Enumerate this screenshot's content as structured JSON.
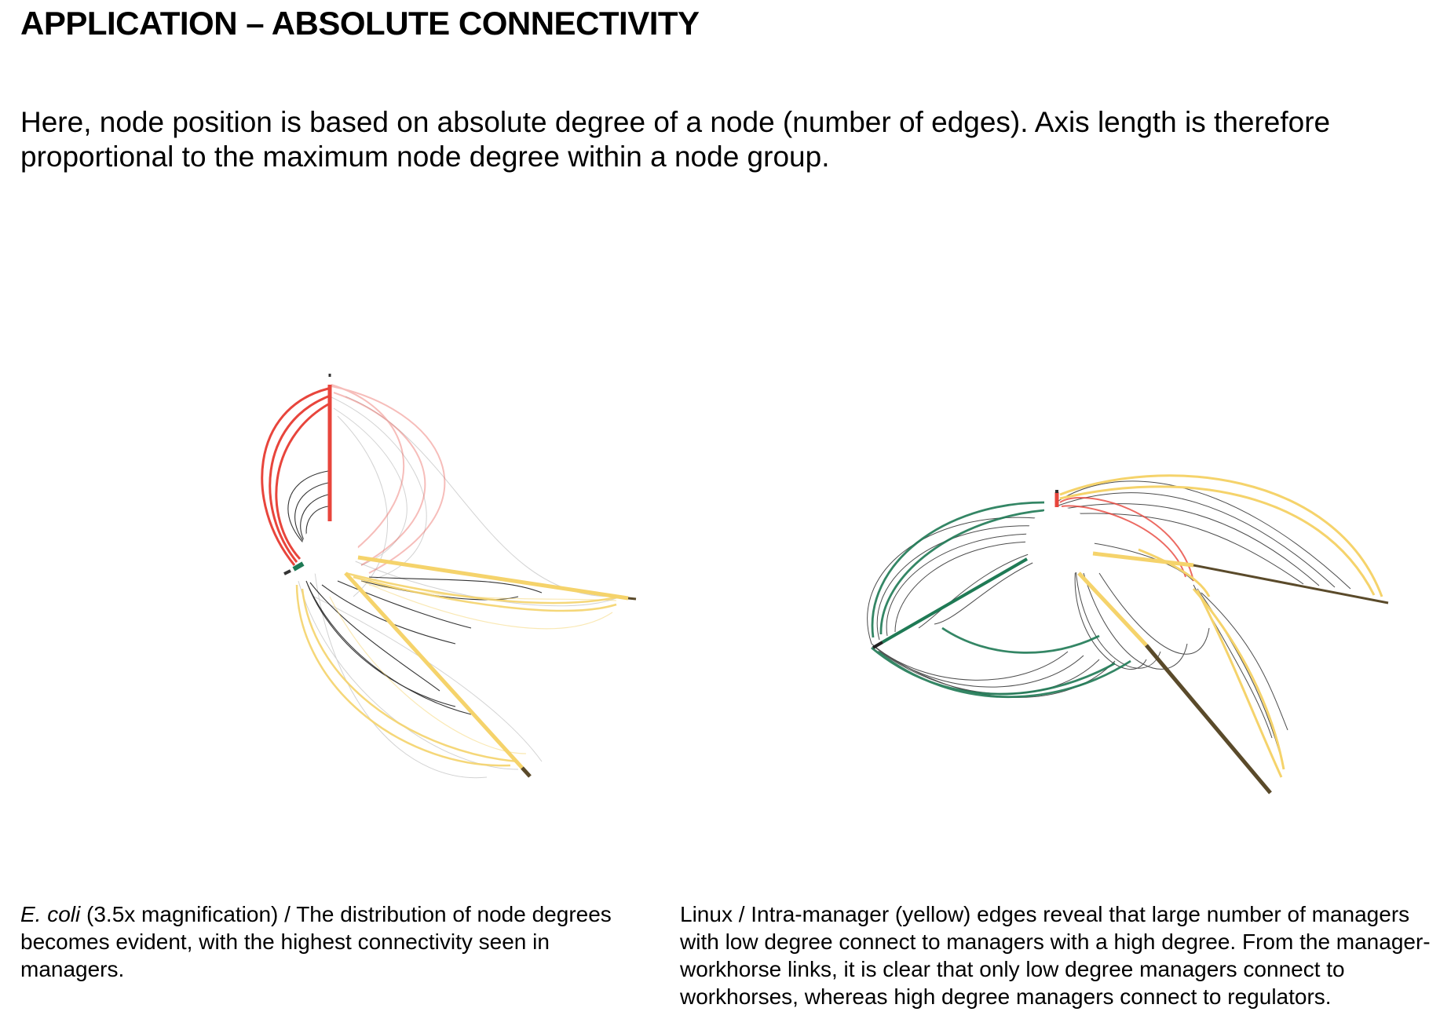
{
  "page": {
    "title": "APPLICATION – ABSOLUTE CONNECTIVITY",
    "intro": "Here, node position is based on absolute degree of a node (number of edges). Axis length is therefore proportional to the maximum node degree within a node group."
  },
  "figures": [
    {
      "id": "ecoli",
      "caption_italic": "E. coli",
      "caption_rest": " (3.5x magnification) / The distribution of node degrees becomes evident, with the highest connectivity seen in managers."
    },
    {
      "id": "linux",
      "caption": "Linux / Intra-manager (yellow) edges reveal that large number of managers with low degree connect to managers with a high degree. From the manager-workhorse links, it is clear that only low degree managers connect to workhorses, whereas high degree managers connect to regulators."
    }
  ],
  "colors": {
    "regulator": "#e8453c",
    "workhorse": "#1f7a55",
    "manager": "#f5d36b",
    "manager_tip": "#5a4a2a",
    "edge_dark": "#111111",
    "edge_light": "#bbbbbb"
  }
}
